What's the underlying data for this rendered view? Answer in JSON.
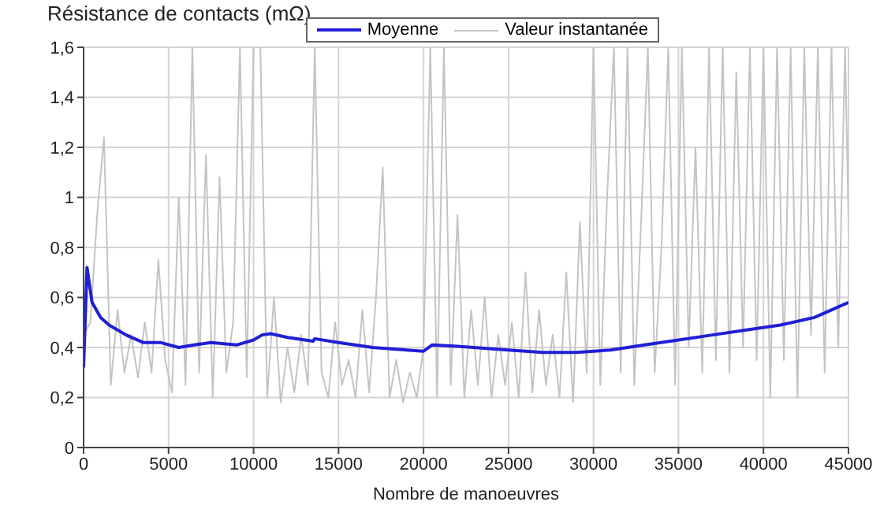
{
  "chart_data": {
    "type": "line",
    "ylabel": "Résistance de contacts (mΩ)",
    "xlabel": "Nombre de manoeuvres",
    "xlim": [
      0,
      45000
    ],
    "xticks": [
      0,
      5000,
      10000,
      15000,
      20000,
      25000,
      30000,
      35000,
      40000,
      45000
    ],
    "ylim": [
      0,
      1.6
    ],
    "yticks": [
      {
        "value": 0,
        "label": "0"
      },
      {
        "value": 0.2,
        "label": "0,2"
      },
      {
        "value": 0.4,
        "label": "0,4"
      },
      {
        "value": 0.6,
        "label": "0,6"
      },
      {
        "value": 0.8,
        "label": "0,8"
      },
      {
        "value": 1,
        "label": "1"
      },
      {
        "value": 1.2,
        "label": "1,2"
      },
      {
        "value": 1.4,
        "label": "1,4"
      },
      {
        "value": 1.6,
        "label": "1,6"
      }
    ],
    "grid": true,
    "legend": "top right",
    "marker": "none",
    "line_style": "solid",
    "series": [
      {
        "name": "Moyenne",
        "color": "#1f1fd6",
        "x": [
          0,
          200,
          500,
          1000,
          1500,
          2500,
          3500,
          4500,
          5600,
          6500,
          7500,
          9000,
          10000,
          10500,
          11000,
          12000,
          13500,
          13600,
          15000,
          17000,
          19000,
          20000,
          20500,
          22000,
          25000,
          27000,
          29000,
          31000,
          33000,
          35000,
          37000,
          39000,
          41000,
          43000,
          44000,
          45000
        ],
        "values": [
          0.32,
          0.72,
          0.58,
          0.52,
          0.49,
          0.45,
          0.42,
          0.42,
          0.4,
          0.41,
          0.42,
          0.41,
          0.43,
          0.45,
          0.455,
          0.44,
          0.425,
          0.435,
          0.42,
          0.4,
          0.39,
          0.385,
          0.41,
          0.405,
          0.39,
          0.38,
          0.38,
          0.39,
          0.41,
          0.43,
          0.45,
          0.47,
          0.49,
          0.52,
          0.55,
          0.58
        ]
      },
      {
        "name": "Valeur instantanée",
        "color": "#c4c4c4",
        "x": [
          0,
          400,
          800,
          1200,
          1600,
          2000,
          2400,
          2800,
          3200,
          3600,
          4000,
          4400,
          4800,
          5200,
          5600,
          6000,
          6400,
          6800,
          7200,
          7600,
          8000,
          8400,
          8800,
          9200,
          9600,
          10000,
          10400,
          10800,
          11200,
          11600,
          12000,
          12400,
          12800,
          13200,
          13600,
          14000,
          14400,
          14800,
          15200,
          15600,
          16000,
          16400,
          16800,
          17200,
          17600,
          18000,
          18400,
          18800,
          19200,
          19600,
          20000,
          20400,
          20800,
          21200,
          21600,
          22000,
          22400,
          22800,
          23200,
          23600,
          24000,
          24400,
          24800,
          25200,
          25600,
          26000,
          26400,
          26800,
          27200,
          27600,
          28000,
          28400,
          28800,
          29200,
          29600,
          30000,
          30400,
          30800,
          31200,
          31600,
          32000,
          32400,
          32800,
          33200,
          33600,
          34000,
          34400,
          34800,
          35200,
          35600,
          36000,
          36400,
          36800,
          37200,
          37600,
          38000,
          38400,
          38800,
          39200,
          39600,
          40000,
          40400,
          40800,
          41200,
          41600,
          42000,
          42400,
          42800,
          43200,
          43600,
          44000,
          44400,
          44800,
          45000
        ],
        "values": [
          0.45,
          0.5,
          0.93,
          1.24,
          0.25,
          0.55,
          0.3,
          0.45,
          0.28,
          0.5,
          0.3,
          0.75,
          0.35,
          0.22,
          1.0,
          0.25,
          1.6,
          0.3,
          1.17,
          0.2,
          1.08,
          0.3,
          0.5,
          1.6,
          0.28,
          1.6,
          1.6,
          0.2,
          0.6,
          0.18,
          0.4,
          0.22,
          0.45,
          0.25,
          1.6,
          0.3,
          0.2,
          0.5,
          0.25,
          0.35,
          0.2,
          0.55,
          0.22,
          0.6,
          1.12,
          0.2,
          0.35,
          0.18,
          0.3,
          0.2,
          0.4,
          1.6,
          0.2,
          1.6,
          0.25,
          0.93,
          0.2,
          0.55,
          0.25,
          0.6,
          0.2,
          0.45,
          0.25,
          0.5,
          0.2,
          0.7,
          0.22,
          0.55,
          0.25,
          0.45,
          0.2,
          0.7,
          0.18,
          0.9,
          0.3,
          1.6,
          0.25,
          1.0,
          1.6,
          0.3,
          1.6,
          0.25,
          0.9,
          1.6,
          0.3,
          0.8,
          1.6,
          0.25,
          1.6,
          0.4,
          1.2,
          0.3,
          1.6,
          0.35,
          1.6,
          0.3,
          1.5,
          0.4,
          1.6,
          0.35,
          1.6,
          0.2,
          1.6,
          0.35,
          1.6,
          0.2,
          1.6,
          0.45,
          1.6,
          0.3,
          1.6,
          0.4,
          1.6,
          0.9
        ]
      }
    ]
  }
}
